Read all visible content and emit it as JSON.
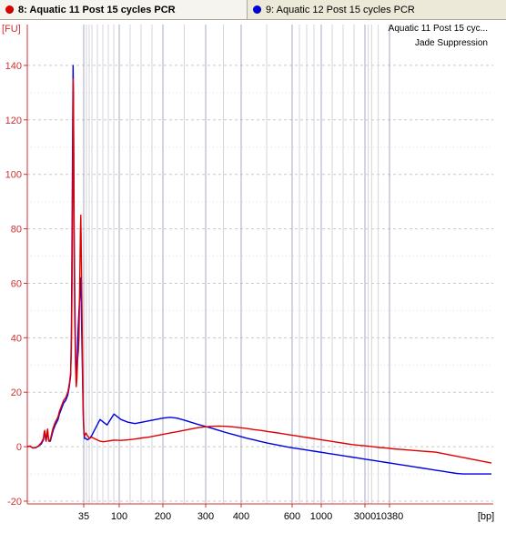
{
  "tabs": [
    {
      "label": "8: Aquatic 11 Post 15 cycles PCR",
      "color": "#e00000",
      "active": true
    },
    {
      "label": "9: Aquatic 12 Post 15 cycles PCR",
      "color": "#0000e0",
      "active": false
    }
  ],
  "legend": {
    "line1": "Aquatic 11 Post 15 cyc...",
    "line2": "Jade Suppression"
  },
  "chart_data": {
    "type": "line",
    "title": "",
    "xlabel": "[bp]",
    "ylabel": "[FU]",
    "x_scale": "electropherogram (non-linear, size ladder)",
    "x_ticks": [
      35,
      100,
      200,
      300,
      400,
      600,
      1000,
      3000,
      10380
    ],
    "y_ticks": [
      -20,
      0,
      20,
      40,
      60,
      80,
      100,
      120,
      140
    ],
    "ylim": [
      -21,
      155
    ],
    "grid": true,
    "series": [
      {
        "name": "8: Aquatic 11 Post 15 cycles PCR",
        "color": "#e00000",
        "points": [
          [
            26,
            0.1
          ],
          [
            30,
            0.2
          ],
          [
            34,
            -0.5
          ],
          [
            38,
            -0.3
          ],
          [
            42,
            0.3
          ],
          [
            46,
            1.5
          ],
          [
            49,
            3
          ],
          [
            50,
            5
          ],
          [
            51,
            6
          ],
          [
            52,
            3
          ],
          [
            53,
            2
          ],
          [
            54,
            5
          ],
          [
            55,
            6.5
          ],
          [
            56,
            4
          ],
          [
            57,
            2
          ],
          [
            59,
            2.5
          ],
          [
            61,
            5
          ],
          [
            63,
            7
          ],
          [
            66,
            9
          ],
          [
            68,
            10
          ],
          [
            70,
            11
          ],
          [
            72,
            13
          ],
          [
            75,
            15
          ],
          [
            78,
            17
          ],
          [
            81,
            18
          ],
          [
            84,
            20
          ],
          [
            86,
            23
          ],
          [
            88,
            27
          ],
          [
            89,
            35
          ],
          [
            90,
            60
          ],
          [
            91,
            100
          ],
          [
            91.5,
            135
          ],
          [
            92,
            125
          ],
          [
            92.5,
            95
          ],
          [
            93,
            70
          ],
          [
            94,
            45
          ],
          [
            95,
            30
          ],
          [
            96,
            22
          ],
          [
            97,
            25
          ],
          [
            98,
            32
          ],
          [
            99,
            35
          ],
          [
            100,
            40
          ],
          [
            101,
            60
          ],
          [
            102,
            80
          ],
          [
            102.5,
            85
          ],
          [
            103,
            78
          ],
          [
            104,
            55
          ],
          [
            105,
            30
          ],
          [
            106,
            15
          ],
          [
            107,
            6
          ],
          [
            108,
            4
          ],
          [
            110,
            5
          ],
          [
            112,
            4
          ],
          [
            115,
            3
          ],
          [
            118,
            3.5
          ],
          [
            122,
            3
          ],
          [
            126,
            2.5
          ],
          [
            130,
            2
          ],
          [
            135,
            1.8
          ],
          [
            140,
            2
          ],
          [
            145,
            2.2
          ],
          [
            150,
            2.4
          ],
          [
            160,
            2.3
          ],
          [
            170,
            2.5
          ],
          [
            180,
            2.8
          ],
          [
            190,
            3.2
          ],
          [
            200,
            3.5
          ],
          [
            210,
            4
          ],
          [
            220,
            4.5
          ],
          [
            230,
            5
          ],
          [
            240,
            5.5
          ],
          [
            250,
            6
          ],
          [
            260,
            6.5
          ],
          [
            270,
            7
          ],
          [
            280,
            7.3
          ],
          [
            290,
            7.5
          ],
          [
            300,
            7.6
          ],
          [
            310,
            7.5
          ],
          [
            320,
            7.3
          ],
          [
            330,
            7
          ],
          [
            340,
            6.7
          ],
          [
            350,
            6.3
          ],
          [
            360,
            6
          ],
          [
            370,
            5.6
          ],
          [
            380,
            5.2
          ],
          [
            390,
            4.8
          ],
          [
            400,
            4.4
          ],
          [
            410,
            4
          ],
          [
            420,
            3.6
          ],
          [
            430,
            3.2
          ],
          [
            440,
            2.8
          ],
          [
            450,
            2.4
          ],
          [
            460,
            2
          ],
          [
            470,
            1.6
          ],
          [
            480,
            1.2
          ],
          [
            490,
            0.8
          ],
          [
            500,
            0.5
          ],
          [
            510,
            0.3
          ],
          [
            520,
            0
          ],
          [
            530,
            -0.3
          ],
          [
            540,
            -0.5
          ],
          [
            550,
            -0.8
          ],
          [
            560,
            -1
          ],
          [
            570,
            -1.2
          ],
          [
            580,
            -1.4
          ],
          [
            590,
            -1.6
          ],
          [
            600,
            -1.8
          ],
          [
            610,
            -2
          ],
          [
            620,
            -2.5
          ],
          [
            630,
            -3
          ],
          [
            640,
            -3.5
          ],
          [
            650,
            -4
          ],
          [
            660,
            -4.5
          ],
          [
            670,
            -5
          ],
          [
            680,
            -5.5
          ],
          [
            690,
            -6
          ]
        ]
      },
      {
        "name": "9: Aquatic 12 Post 15 cycles PCR",
        "color": "#0000e0",
        "points": [
          [
            26,
            0
          ],
          [
            30,
            0.2
          ],
          [
            34,
            -0.5
          ],
          [
            38,
            -0.4
          ],
          [
            42,
            0.2
          ],
          [
            46,
            1
          ],
          [
            49,
            2.5
          ],
          [
            50,
            4.5
          ],
          [
            51,
            5.5
          ],
          [
            52,
            3
          ],
          [
            53,
            2
          ],
          [
            54,
            4
          ],
          [
            55,
            5.5
          ],
          [
            56,
            3.5
          ],
          [
            57,
            2
          ],
          [
            59,
            2
          ],
          [
            61,
            4
          ],
          [
            63,
            6
          ],
          [
            66,
            8
          ],
          [
            68,
            9
          ],
          [
            70,
            10
          ],
          [
            72,
            12
          ],
          [
            75,
            14
          ],
          [
            78,
            16
          ],
          [
            81,
            17
          ],
          [
            84,
            19
          ],
          [
            86,
            22
          ],
          [
            88,
            26
          ],
          [
            89,
            40
          ],
          [
            90,
            80
          ],
          [
            91,
            120
          ],
          [
            91.5,
            140
          ],
          [
            92,
            130
          ],
          [
            92.5,
            105
          ],
          [
            93,
            80
          ],
          [
            94,
            55
          ],
          [
            95,
            35
          ],
          [
            96,
            25
          ],
          [
            97,
            28
          ],
          [
            98,
            38
          ],
          [
            99,
            45
          ],
          [
            100,
            50
          ],
          [
            101,
            55
          ],
          [
            102,
            60
          ],
          [
            102.5,
            62
          ],
          [
            103,
            55
          ],
          [
            104,
            40
          ],
          [
            105,
            25
          ],
          [
            106,
            12
          ],
          [
            107,
            5
          ],
          [
            108,
            3
          ],
          [
            110,
            3
          ],
          [
            112,
            2.5
          ],
          [
            115,
            3
          ],
          [
            118,
            4
          ],
          [
            122,
            6
          ],
          [
            126,
            8
          ],
          [
            130,
            10
          ],
          [
            135,
            9
          ],
          [
            140,
            8
          ],
          [
            145,
            10
          ],
          [
            150,
            12
          ],
          [
            160,
            10
          ],
          [
            170,
            9
          ],
          [
            180,
            8.5
          ],
          [
            190,
            9
          ],
          [
            200,
            9.5
          ],
          [
            210,
            10
          ],
          [
            220,
            10.5
          ],
          [
            230,
            10.8
          ],
          [
            240,
            10.5
          ],
          [
            250,
            9.8
          ],
          [
            260,
            9
          ],
          [
            270,
            8.2
          ],
          [
            280,
            7.5
          ],
          [
            290,
            6.8
          ],
          [
            300,
            6
          ],
          [
            310,
            5.2
          ],
          [
            320,
            4.5
          ],
          [
            330,
            3.8
          ],
          [
            340,
            3.1
          ],
          [
            350,
            2.5
          ],
          [
            360,
            1.9
          ],
          [
            370,
            1.3
          ],
          [
            380,
            0.8
          ],
          [
            390,
            0.3
          ],
          [
            400,
            -0.2
          ],
          [
            410,
            -0.6
          ],
          [
            420,
            -1
          ],
          [
            430,
            -1.4
          ],
          [
            440,
            -1.8
          ],
          [
            450,
            -2.2
          ],
          [
            460,
            -2.6
          ],
          [
            470,
            -3
          ],
          [
            480,
            -3.4
          ],
          [
            490,
            -3.8
          ],
          [
            500,
            -4.2
          ],
          [
            510,
            -4.6
          ],
          [
            520,
            -5
          ],
          [
            530,
            -5.4
          ],
          [
            540,
            -5.8
          ],
          [
            550,
            -6.2
          ],
          [
            560,
            -6.6
          ],
          [
            570,
            -7
          ],
          [
            580,
            -7.4
          ],
          [
            590,
            -7.8
          ],
          [
            600,
            -8.2
          ],
          [
            610,
            -8.6
          ],
          [
            620,
            -9
          ],
          [
            630,
            -9.4
          ],
          [
            640,
            -9.8
          ],
          [
            650,
            -10
          ],
          [
            660,
            -10
          ],
          [
            670,
            -10
          ],
          [
            680,
            -10
          ],
          [
            690,
            -10
          ]
        ]
      }
    ]
  }
}
